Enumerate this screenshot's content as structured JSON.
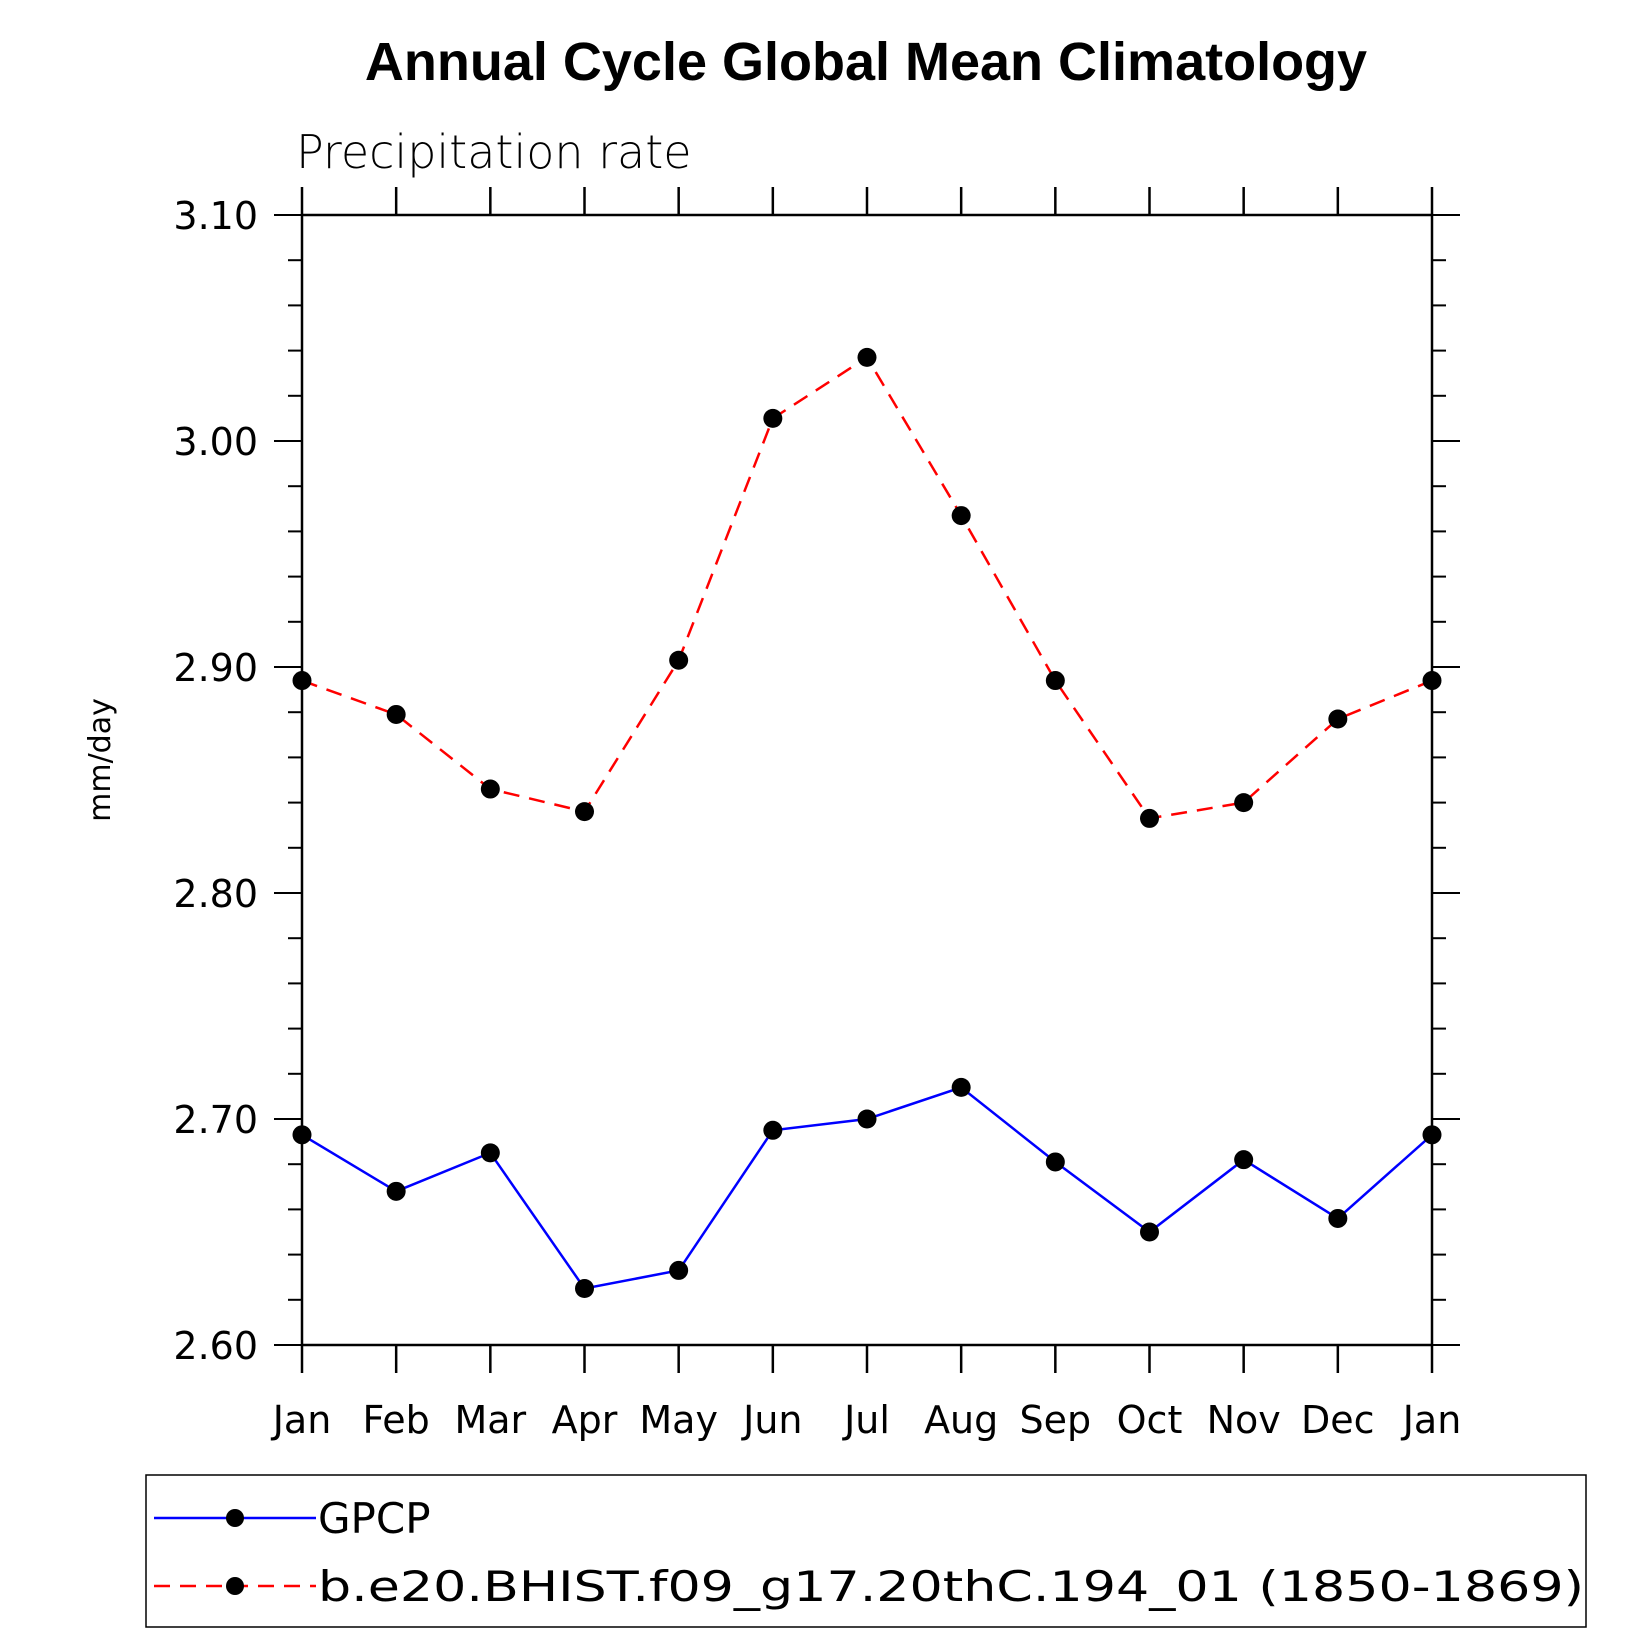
{
  "chart_data": {
    "type": "line",
    "title": "Annual Cycle Global Mean Climatology",
    "subtitle": "Precipitation rate",
    "xlabel": "",
    "ylabel": "mm/day",
    "categories": [
      "Jan",
      "Feb",
      "Mar",
      "Apr",
      "May",
      "Jun",
      "Jul",
      "Aug",
      "Sep",
      "Oct",
      "Nov",
      "Dec",
      "Jan"
    ],
    "ylim": [
      2.6,
      3.1
    ],
    "yticks": [
      "2.60",
      "2.70",
      "2.80",
      "2.90",
      "3.00",
      "3.10"
    ],
    "ytick_values": [
      2.6,
      2.7,
      2.8,
      2.9,
      3.0,
      3.1
    ],
    "y_minor_step": 0.02,
    "grid": false,
    "legend_position": "bottom",
    "series": [
      {
        "name": "GPCP",
        "color": "#0000ff",
        "style": "solid",
        "marker": "circle",
        "values": [
          2.693,
          2.668,
          2.685,
          2.625,
          2.633,
          2.695,
          2.7,
          2.714,
          2.681,
          2.65,
          2.682,
          2.656,
          2.693
        ]
      },
      {
        "name": "b.e20.BHIST.f09_g17.20thC.194_01 (1850-1869)",
        "color": "#ff0000",
        "style": "dashed",
        "marker": "circle",
        "values": [
          2.894,
          2.879,
          2.846,
          2.836,
          2.903,
          3.01,
          3.037,
          2.967,
          2.894,
          2.833,
          2.84,
          2.877,
          2.894
        ]
      }
    ]
  }
}
